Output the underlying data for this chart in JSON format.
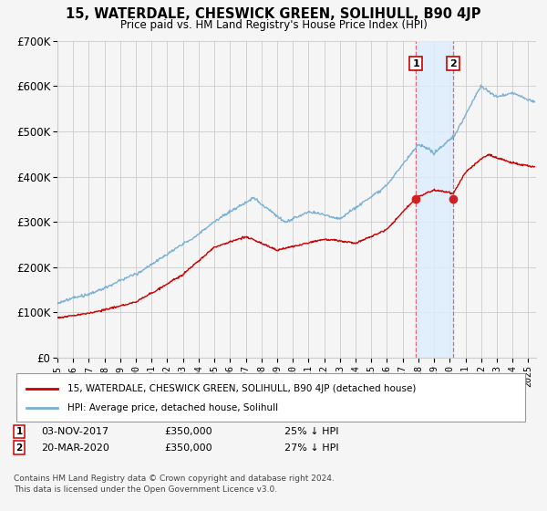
{
  "title": "15, WATERDALE, CHESWICK GREEN, SOLIHULL, B90 4JP",
  "subtitle": "Price paid vs. HM Land Registry's House Price Index (HPI)",
  "legend_label_red": "15, WATERDALE, CHESWICK GREEN, SOLIHULL, B90 4JP (detached house)",
  "legend_label_blue": "HPI: Average price, detached house, Solihull",
  "annotation1_date": "03-NOV-2017",
  "annotation1_price": "£350,000",
  "annotation1_hpi": "25% ↓ HPI",
  "annotation1_year": 2017.84,
  "annotation1_value": 350000,
  "annotation2_date": "20-MAR-2020",
  "annotation2_price": "£350,000",
  "annotation2_hpi": "27% ↓ HPI",
  "annotation2_year": 2020.22,
  "annotation2_value": 350000,
  "footer1": "Contains HM Land Registry data © Crown copyright and database right 2024.",
  "footer2": "This data is licensed under the Open Government Licence v3.0.",
  "red_color": "#cc0000",
  "blue_color": "#7ab0d4",
  "shade_color": "#ddeeff",
  "background_color": "#f5f5f5",
  "grid_color": "#cccccc",
  "ylim": [
    0,
    700000
  ],
  "xlim_start": 1995.0,
  "xlim_end": 2025.5
}
